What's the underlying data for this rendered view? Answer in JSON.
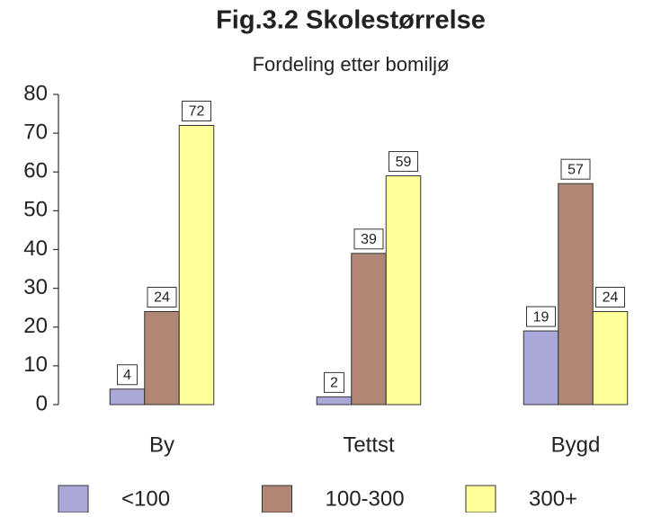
{
  "chart_data": {
    "type": "bar",
    "title": "Fig.3.2 Skolestørrelse",
    "subtitle": "Fordeling etter bomiljø",
    "categories": [
      "By",
      "Tettst",
      "Bygd"
    ],
    "series": [
      {
        "name": "<100",
        "color": "#aaa8d8",
        "values": [
          4,
          2,
          19
        ]
      },
      {
        "name": "100-300",
        "color": "#b08674",
        "values": [
          24,
          39,
          57
        ]
      },
      {
        "name": "300+",
        "color": "#ffff99",
        "values": [
          72,
          59,
          24
        ]
      }
    ],
    "ylim": [
      0,
      80
    ],
    "yticks": [
      0,
      10,
      20,
      30,
      40,
      50,
      60,
      70,
      80
    ],
    "legend": "bottom"
  }
}
